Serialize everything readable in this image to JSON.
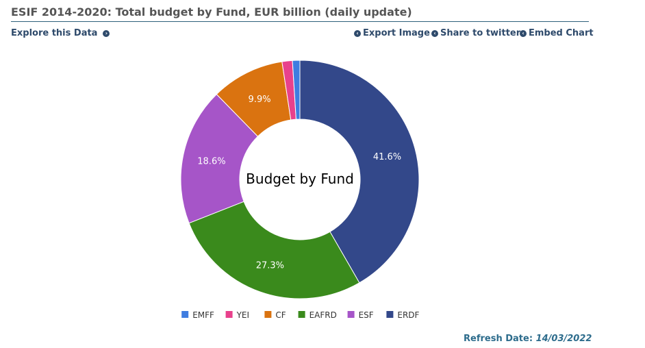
{
  "header": {
    "title": "ESIF 2014-2020: Total budget by Fund, EUR billion (daily update)",
    "explore_label": "Explore this Data",
    "export_label": "Export Image",
    "share_label": "Share to twitter",
    "embed_label": "Embed Chart"
  },
  "footer": {
    "refresh_label": "Refresh Date:",
    "refresh_date": "14/03/2022"
  },
  "chart_data": {
    "type": "pie",
    "center_label": "Budget by Fund",
    "series": [
      {
        "name": "ERDF",
        "value": 41.6,
        "label": "41.6%",
        "color": "#33488a"
      },
      {
        "name": "EAFRD",
        "value": 27.3,
        "label": "27.3%",
        "color": "#3a8a1c"
      },
      {
        "name": "ESF",
        "value": 18.6,
        "label": "18.6%",
        "color": "#a655c8"
      },
      {
        "name": "CF",
        "value": 9.9,
        "label": "9.9%",
        "color": "#da7310"
      },
      {
        "name": "YEI",
        "value": 1.4,
        "label": "",
        "color": "#e8418c"
      },
      {
        "name": "EMFF",
        "value": 1.0,
        "label": "",
        "color": "#3f7de0"
      }
    ],
    "legend_order": [
      "EMFF",
      "YEI",
      "CF",
      "EAFRD",
      "ESF",
      "ERDF"
    ],
    "legend_position": "bottom"
  }
}
